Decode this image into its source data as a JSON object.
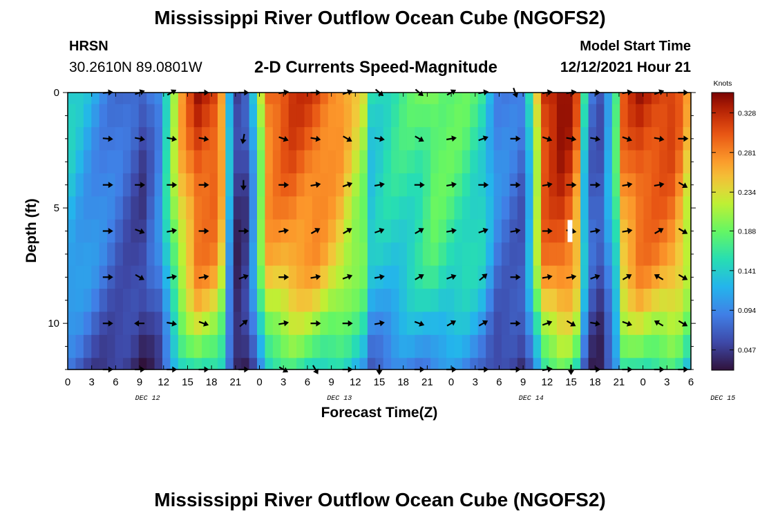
{
  "page_title": "Mississippi River Outflow Ocean Cube (NGOFS2)",
  "station": {
    "name": "HRSN",
    "coords": "30.2610N  89.0801W"
  },
  "model_start": {
    "label": "Model Start Time",
    "value": "12/12/2021 Hour 21"
  },
  "footer_title": "Mississippi River Outflow Ocean Cube (NGOFS2)",
  "chart_data": {
    "type": "heatmap",
    "title": "2-D Currents Speed-Magnitude",
    "xlabel": "Forecast Time(Z)",
    "ylabel": "Depth (ft)",
    "x_ticks": [
      "0",
      "3",
      "6",
      "9",
      "12",
      "15",
      "18",
      "21",
      "0",
      "3",
      "6",
      "9",
      "12",
      "15",
      "18",
      "21",
      "0",
      "3",
      "6",
      "9",
      "12",
      "15",
      "18",
      "21",
      "0",
      "3",
      "6"
    ],
    "date_labels": [
      "DEC 12",
      "DEC 13",
      "DEC 14",
      "DEC 15"
    ],
    "y_ticks": [
      "0",
      "5",
      "10"
    ],
    "ylim": [
      0,
      12
    ],
    "colorbar": {
      "label": "Knots",
      "ticks": [
        "0.047",
        "0.094",
        "0.141",
        "0.188",
        "0.234",
        "0.281",
        "0.328"
      ],
      "range": [
        0.023,
        0.352
      ]
    },
    "time_range_hours": [
      0,
      78
    ],
    "n_time_steps": 79,
    "depth_levels_ft": [
      0,
      1,
      2,
      3,
      4,
      5,
      6,
      7,
      8,
      9,
      10,
      11,
      12
    ],
    "speed_keypoints_by_hour": [
      [
        0,
        0.14
      ],
      [
        4,
        0.1
      ],
      [
        9,
        0.06
      ],
      [
        11,
        0.1
      ],
      [
        12,
        0.16
      ],
      [
        13,
        0.22
      ],
      [
        14,
        0.27
      ],
      [
        16,
        0.33
      ],
      [
        18,
        0.32
      ],
      [
        19,
        0.28
      ],
      [
        20,
        0.13
      ],
      [
        21,
        0.05
      ],
      [
        22,
        0.06
      ],
      [
        23,
        0.12
      ],
      [
        24,
        0.22
      ],
      [
        25,
        0.3
      ],
      [
        28,
        0.32
      ],
      [
        31,
        0.31
      ],
      [
        34,
        0.28
      ],
      [
        37,
        0.22
      ],
      [
        38,
        0.15
      ],
      [
        40,
        0.16
      ],
      [
        44,
        0.18
      ],
      [
        46,
        0.2
      ],
      [
        50,
        0.18
      ],
      [
        52,
        0.16
      ],
      [
        54,
        0.1
      ],
      [
        57,
        0.08
      ],
      [
        58,
        0.14
      ],
      [
        59,
        0.24
      ],
      [
        60,
        0.33
      ],
      [
        62,
        0.35
      ],
      [
        63,
        0.34
      ],
      [
        64,
        0.3
      ],
      [
        65,
        0.15
      ],
      [
        66,
        0.08
      ],
      [
        67,
        0.07
      ],
      [
        68,
        0.12
      ],
      [
        69,
        0.18
      ],
      [
        70,
        0.3
      ],
      [
        72,
        0.33
      ],
      [
        76,
        0.32
      ],
      [
        77,
        0.3
      ],
      [
        78,
        0.26
      ]
    ],
    "depth_factors": [
      1.0,
      0.98,
      0.96,
      0.94,
      0.92,
      0.9,
      0.88,
      0.86,
      0.82,
      0.76,
      0.68,
      0.6,
      0.52
    ],
    "arrow_depths_ft": [
      0,
      2,
      4,
      6,
      8,
      10,
      12
    ],
    "arrow_times_hours": [
      5,
      9,
      13,
      17,
      22,
      27,
      31,
      35,
      39,
      44,
      48,
      52,
      56,
      60,
      63,
      66,
      70,
      74,
      77
    ],
    "arrow_directions_deg": [
      [
        5,
        20,
        30,
        0,
        0,
        10,
        0,
        20,
        -40,
        -40,
        30,
        10,
        -70,
        10,
        10,
        0,
        10,
        20,
        0
      ],
      [
        -5,
        -10,
        -10,
        -10,
        -100,
        -20,
        -10,
        -30,
        -10,
        -30,
        10,
        20,
        0,
        -20,
        -10,
        -10,
        -20,
        -10,
        0
      ],
      [
        0,
        0,
        0,
        0,
        -90,
        0,
        10,
        20,
        10,
        0,
        10,
        0,
        0,
        10,
        0,
        0,
        10,
        10,
        -30
      ],
      [
        0,
        -20,
        10,
        0,
        0,
        10,
        30,
        30,
        20,
        30,
        10,
        20,
        10,
        0,
        -10,
        10,
        10,
        30,
        -30
      ],
      [
        0,
        -30,
        10,
        10,
        20,
        0,
        10,
        20,
        10,
        30,
        20,
        40,
        0,
        10,
        10,
        20,
        30,
        150,
        -30
      ],
      [
        0,
        180,
        -10,
        -20,
        40,
        10,
        0,
        0,
        10,
        -20,
        30,
        30,
        0,
        20,
        -30,
        -10,
        -20,
        150,
        -30
      ],
      [
        0,
        0,
        0,
        0,
        0,
        -30,
        -60,
        0,
        -90,
        0,
        0,
        0,
        0,
        10,
        -90,
        0,
        0,
        0,
        0
      ]
    ],
    "highlight_marker": {
      "hour": 63,
      "depth_ft": 6
    }
  }
}
